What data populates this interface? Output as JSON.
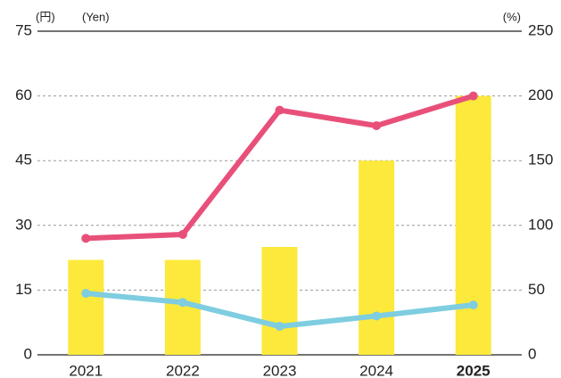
{
  "chart_data": {
    "type": "bar_line",
    "y_label": "(円)",
    "y_label_en": "(Yen)",
    "y2_label": "(%)",
    "categories": [
      "2021",
      "2022",
      "2023",
      "2024",
      "2025"
    ],
    "values": [
      22,
      22,
      25,
      45,
      60
    ],
    "color": "#fce93c",
    "series": [
      {
        "color": "#e8507a",
        "values": [
          90,
          93,
          189,
          177,
          200
        ],
        "axis": "y2"
      },
      {
        "color": "#7ecde0",
        "values": [
          47.5,
          40.5,
          22,
          30,
          38.5
        ],
        "axis": "y2"
      }
    ],
    "ylim": [
      0,
      75
    ],
    "yticks": [
      0,
      15,
      30,
      45,
      60,
      75
    ],
    "y2lim": [
      0,
      250
    ],
    "y2ticks": [
      0,
      50,
      100,
      150,
      200,
      250
    ],
    "grid": true
  }
}
